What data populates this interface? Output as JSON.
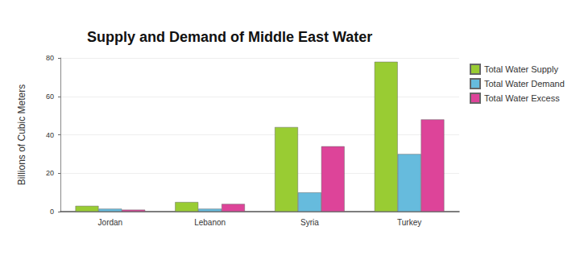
{
  "chart_data": {
    "type": "bar",
    "title": "Supply and Demand of Middle East Water",
    "y_label": "Billions of Cubic Meters",
    "categories": [
      "Jordan",
      "Lebanon",
      "Syria",
      "Turkey"
    ],
    "series": [
      {
        "name": "Total Water Supply",
        "color": "#99cc33",
        "values": [
          3,
          5,
          44,
          78
        ]
      },
      {
        "name": "Total Water Demand",
        "color": "#66bbdd",
        "values": [
          1.5,
          1.5,
          10,
          30
        ]
      },
      {
        "name": "Total Water Excess",
        "color": "#dd4499",
        "values": [
          1,
          4,
          34,
          48
        ]
      }
    ],
    "ylim": [
      0,
      80
    ],
    "yticks": [
      0,
      20,
      40,
      60,
      80
    ],
    "grid": true,
    "legend": "right"
  }
}
